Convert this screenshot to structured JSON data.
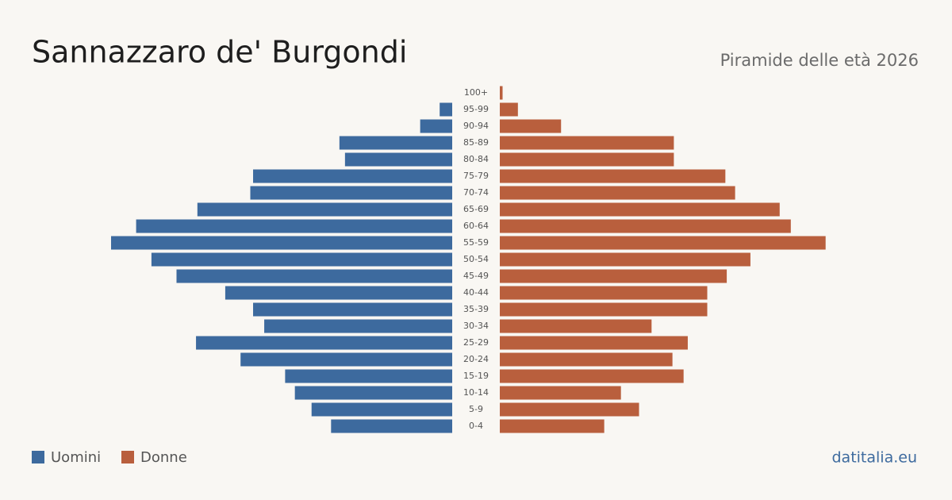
{
  "chart_data": {
    "type": "pyramid",
    "title": "Sannazzaro de' Burgondi",
    "subtitle": "Piramide delle età 2026",
    "source": "datitalia.eu",
    "categories": [
      "100+",
      "95-99",
      "90-94",
      "85-89",
      "80-84",
      "75-79",
      "70-74",
      "65-69",
      "60-64",
      "55-59",
      "50-54",
      "45-49",
      "40-44",
      "35-39",
      "30-34",
      "25-29",
      "20-24",
      "15-19",
      "10-14",
      "5-9",
      "0-4"
    ],
    "series": [
      {
        "name": "Uomini",
        "color": "#3d6a9e",
        "values": [
          0,
          9,
          23,
          81,
          77,
          143,
          145,
          183,
          227,
          245,
          216,
          198,
          163,
          143,
          135,
          184,
          152,
          120,
          113,
          101,
          87
        ]
      },
      {
        "name": "Donne",
        "color": "#b95f3d",
        "values": [
          2,
          13,
          44,
          125,
          125,
          162,
          169,
          201,
          209,
          234,
          180,
          163,
          149,
          149,
          109,
          135,
          124,
          132,
          87,
          100,
          75
        ]
      }
    ]
  }
}
